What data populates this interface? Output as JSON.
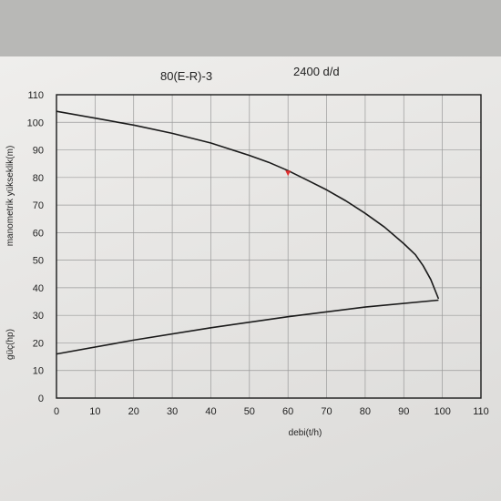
{
  "header": {
    "title": "80(E-R)-3",
    "subtitle": "2400 d/d"
  },
  "colors": {
    "paper": "#e9e8e6",
    "grid": "#9a9a9a",
    "curve": "#1a1a1a",
    "marker": "#e03030"
  },
  "chart_data": {
    "type": "line",
    "title": "80(E-R)-3",
    "subtitle": "2400 d/d",
    "xlabel": "debi(t/h)",
    "ylabel": "manometrik yükseklik(m)",
    "ylabel2": "güç(hp)",
    "xlim": [
      0,
      110
    ],
    "ylim": [
      0,
      110
    ],
    "grid": true,
    "x_ticks": [
      "0",
      "10",
      "20",
      "30",
      "40",
      "50",
      "60",
      "70",
      "80",
      "90",
      "100",
      "110"
    ],
    "y_ticks": [
      "0",
      "10",
      "20",
      "30",
      "40",
      "50",
      "60",
      "70",
      "80",
      "90",
      "100",
      "110"
    ],
    "series": [
      {
        "name": "",
        "x": [
          0,
          10,
          20,
          30,
          40,
          50,
          55,
          60,
          65,
          70,
          75,
          80,
          85,
          90,
          93,
          95,
          97,
          99
        ],
        "y": [
          104,
          101.5,
          99,
          96,
          92.5,
          88,
          85.5,
          82.5,
          79,
          75.5,
          71.5,
          67,
          62,
          56,
          52,
          48,
          43,
          36
        ]
      },
      {
        "name": "",
        "x": [
          0,
          20,
          40,
          60,
          80,
          99
        ],
        "y": [
          16,
          21,
          25.5,
          29.5,
          33,
          35.5
        ]
      }
    ],
    "marker": {
      "x": 60,
      "y": 81.5
    }
  }
}
